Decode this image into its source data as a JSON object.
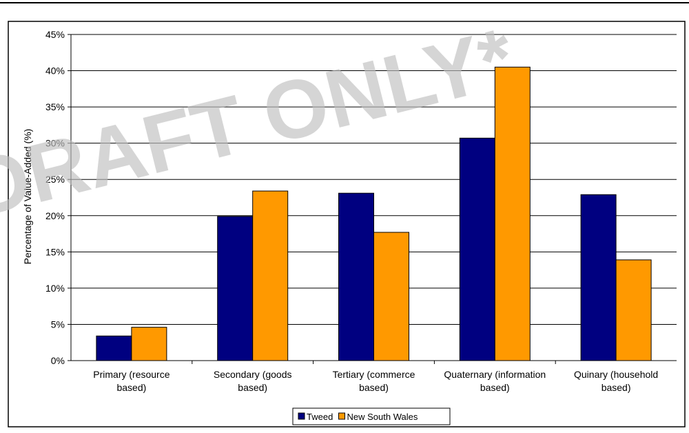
{
  "watermark": "DRAFT ONLY*",
  "colors": {
    "tweed": "#000080",
    "nsw": "#FF9900",
    "grid": "#000000",
    "border": "#000000"
  },
  "chart_data": {
    "type": "bar",
    "ylabel": "Percentage of Value-Added (%)",
    "xlabel": "",
    "ylim": [
      0,
      45
    ],
    "yticks": [
      0,
      5,
      10,
      15,
      20,
      25,
      30,
      35,
      40,
      45
    ],
    "ytick_labels": [
      "0%",
      "5%",
      "10%",
      "15%",
      "20%",
      "25%",
      "30%",
      "35%",
      "40%",
      "45%"
    ],
    "grid": true,
    "legend_position": "bottom",
    "categories": [
      [
        "Primary (resource",
        "based)"
      ],
      [
        "Secondary (goods",
        "based)"
      ],
      [
        "Tertiary (commerce",
        "based)"
      ],
      [
        "Quaternary (information",
        "based)"
      ],
      [
        "Quinary (household",
        "based)"
      ]
    ],
    "series": [
      {
        "name": "Tweed",
        "color": "#000080",
        "values": [
          3.4,
          19.9,
          23.1,
          30.7,
          22.9
        ]
      },
      {
        "name": "New South Wales",
        "color": "#FF9900",
        "values": [
          4.6,
          23.4,
          17.7,
          40.5,
          13.9
        ]
      }
    ]
  }
}
